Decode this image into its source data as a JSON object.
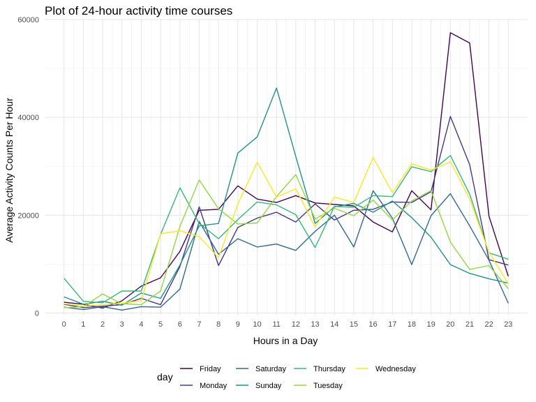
{
  "chart_data": {
    "type": "line",
    "title": "Plot of 24-hour activity time courses",
    "xlabel": "Hours in a Day",
    "ylabel": "Average Activity Counts Per Hour",
    "x": [
      0,
      1,
      2,
      3,
      4,
      5,
      6,
      7,
      8,
      9,
      10,
      11,
      12,
      13,
      14,
      15,
      16,
      17,
      18,
      19,
      20,
      21,
      22,
      23
    ],
    "x_tick_labels": [
      "0",
      "1",
      "2",
      "3",
      "4",
      "5",
      "6",
      "7",
      "8",
      "9",
      "10",
      "11",
      "12",
      "13",
      "14",
      "15",
      "16",
      "17",
      "18",
      "19",
      "20",
      "21",
      "22",
      "23"
    ],
    "xlim": [
      -1,
      24
    ],
    "ylim": [
      -500,
      60000
    ],
    "y_ticks": [
      0,
      20000,
      40000,
      60000
    ],
    "y_tick_labels": [
      "0",
      "20000",
      "40000",
      "60000"
    ],
    "grid": true,
    "legend": {
      "title": "day",
      "position": "bottom",
      "entries": [
        "Friday",
        "Monday",
        "Saturday",
        "Sunday",
        "Thursday",
        "Tuesday",
        "Wednesday"
      ]
    },
    "series": [
      {
        "name": "Friday",
        "color": "#440154",
        "values": [
          2200,
          1800,
          1000,
          2500,
          5500,
          7200,
          12600,
          21000,
          21200,
          26000,
          23300,
          22600,
          24000,
          22500,
          22200,
          21900,
          18600,
          16600,
          25000,
          21100,
          57300,
          55200,
          19800,
          7500
        ]
      },
      {
        "name": "Monday",
        "color": "#443983",
        "values": [
          1800,
          1100,
          1400,
          1700,
          3000,
          1700,
          9500,
          21700,
          9700,
          17500,
          19400,
          20600,
          18600,
          22300,
          19000,
          21000,
          21200,
          22700,
          22600,
          24800,
          40200,
          30300,
          10900,
          9800
        ]
      },
      {
        "name": "Saturday",
        "color": "#31688e",
        "values": [
          1200,
          700,
          1300,
          600,
          1300,
          1200,
          4900,
          18700,
          12000,
          15200,
          13500,
          14100,
          12800,
          16700,
          20000,
          13500,
          25000,
          19400,
          9900,
          19900,
          24400,
          17800,
          10800,
          2000
        ]
      },
      {
        "name": "Sunday",
        "color": "#21918c",
        "values": [
          3300,
          1800,
          2400,
          1600,
          4100,
          3000,
          9800,
          17800,
          18300,
          32700,
          36000,
          46000,
          32000,
          18300,
          21700,
          22400,
          20600,
          22900,
          19500,
          15500,
          9900,
          8100,
          7000,
          6100
        ]
      },
      {
        "name": "Thursday",
        "color": "#35b779",
        "values": [
          7100,
          2400,
          2100,
          4500,
          4500,
          16100,
          25600,
          18300,
          15200,
          19100,
          22700,
          22100,
          20100,
          13400,
          21800,
          21600,
          24000,
          23800,
          29900,
          28900,
          32200,
          24300,
          12300,
          11000
        ]
      },
      {
        "name": "Tuesday",
        "color": "#90d743",
        "values": [
          1100,
          1300,
          3900,
          1900,
          1700,
          4500,
          17700,
          27200,
          21300,
          18200,
          18400,
          23800,
          28300,
          19200,
          21400,
          19900,
          23100,
          19000,
          22900,
          25000,
          14500,
          8900,
          9700,
          5000
        ]
      },
      {
        "name": "Wednesday",
        "color": "#fde725",
        "values": [
          1900,
          1400,
          1700,
          2000,
          2500,
          16200,
          16800,
          15600,
          11300,
          22300,
          30800,
          23700,
          25400,
          17600,
          23700,
          22600,
          31800,
          24600,
          30500,
          29200,
          30900,
          23300,
          12400,
          6000
        ]
      }
    ]
  }
}
